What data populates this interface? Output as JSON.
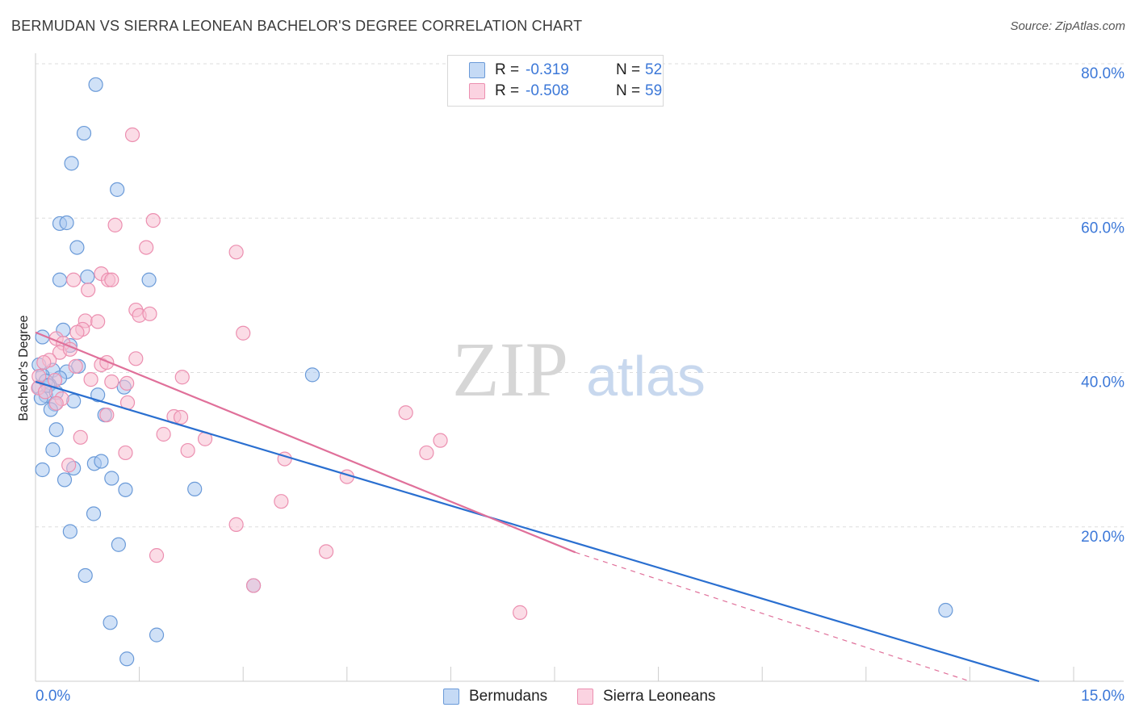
{
  "title": "BERMUDAN VS SIERRA LEONEAN BACHELOR'S DEGREE CORRELATION CHART",
  "source": "Source: ZipAtlas.com",
  "watermark": {
    "zip": "ZIP",
    "atlas": "atlas"
  },
  "legend": {
    "r_label": "R =",
    "n_label": "N =",
    "rows": [
      {
        "r": "-0.319",
        "n": "52"
      },
      {
        "r": "-0.508",
        "n": "59"
      }
    ]
  },
  "colors": {
    "blue_fill": "#aac8f0",
    "blue_stroke": "#6a9ad8",
    "blue_line": "#2a6fd0",
    "pink_fill": "#f7bfd2",
    "pink_stroke": "#ec8fb0",
    "pink_line": "#e0709a",
    "grid": "#dddddd",
    "axis_text": "#3c78d8"
  },
  "chart_data": {
    "type": "scatter",
    "title": "BERMUDAN VS SIERRA LEONEAN BACHELOR'S DEGREE CORRELATION CHART",
    "xlabel": "",
    "ylabel": "Bachelor's Degree",
    "xlim": [
      0,
      15
    ],
    "ylim": [
      0,
      80
    ],
    "x_tick_labels": [
      "0.0%",
      "15.0%"
    ],
    "y_ticks": [
      20,
      40,
      60,
      80
    ],
    "y_tick_labels": [
      "20.0%",
      "40.0%",
      "60.0%",
      "80.0%"
    ],
    "grid": true,
    "series": [
      {
        "name": "Bermudans",
        "r": -0.319,
        "n": 52,
        "trend": {
          "x": [
            0,
            14.5
          ],
          "y": [
            38.8,
            0
          ]
        },
        "points": [
          [
            0.87,
            77.3
          ],
          [
            0.7,
            71.0
          ],
          [
            0.52,
            67.1
          ],
          [
            1.18,
            63.7
          ],
          [
            0.35,
            59.3
          ],
          [
            0.45,
            59.4
          ],
          [
            0.6,
            56.2
          ],
          [
            0.35,
            52.0
          ],
          [
            0.75,
            52.4
          ],
          [
            1.64,
            52.0
          ],
          [
            0.1,
            44.6
          ],
          [
            0.4,
            45.5
          ],
          [
            0.5,
            43.5
          ],
          [
            0.05,
            41.0
          ],
          [
            0.62,
            40.8
          ],
          [
            0.25,
            40.3
          ],
          [
            0.1,
            39.6
          ],
          [
            0.45,
            40.1
          ],
          [
            0.35,
            39.3
          ],
          [
            0.2,
            38.4
          ],
          [
            0.05,
            38.1
          ],
          [
            0.9,
            37.1
          ],
          [
            1.28,
            38.1
          ],
          [
            0.15,
            37.0
          ],
          [
            0.28,
            35.9
          ],
          [
            0.55,
            36.3
          ],
          [
            0.22,
            35.2
          ],
          [
            1.0,
            34.5
          ],
          [
            4.0,
            39.7
          ],
          [
            0.3,
            32.6
          ],
          [
            0.25,
            30.0
          ],
          [
            0.1,
            27.4
          ],
          [
            0.85,
            28.2
          ],
          [
            0.95,
            28.5
          ],
          [
            0.55,
            27.6
          ],
          [
            0.42,
            26.1
          ],
          [
            1.1,
            26.3
          ],
          [
            1.3,
            24.8
          ],
          [
            2.3,
            24.9
          ],
          [
            0.84,
            21.7
          ],
          [
            0.5,
            19.4
          ],
          [
            1.2,
            17.7
          ],
          [
            0.72,
            13.7
          ],
          [
            3.15,
            12.4
          ],
          [
            1.08,
            7.6
          ],
          [
            1.75,
            6.0
          ],
          [
            1.32,
            2.9
          ],
          [
            13.15,
            9.2
          ],
          [
            0.15,
            38.9
          ],
          [
            0.08,
            36.7
          ],
          [
            0.18,
            38.3
          ],
          [
            0.3,
            37.4
          ]
        ]
      },
      {
        "name": "Sierra Leoneans",
        "r": -0.508,
        "n": 59,
        "trend": {
          "x": [
            0,
            7.8
          ],
          "y": [
            45.2,
            16.7
          ]
        },
        "trend_dashed": {
          "x": [
            7.8,
            13.5
          ],
          "y": [
            16.7,
            0
          ]
        },
        "points": [
          [
            1.4,
            70.8
          ],
          [
            1.7,
            59.7
          ],
          [
            1.15,
            59.1
          ],
          [
            1.6,
            56.2
          ],
          [
            2.9,
            55.6
          ],
          [
            0.95,
            52.8
          ],
          [
            1.05,
            52.0
          ],
          [
            0.55,
            52.0
          ],
          [
            1.1,
            52.0
          ],
          [
            0.76,
            50.7
          ],
          [
            1.45,
            48.1
          ],
          [
            1.5,
            47.4
          ],
          [
            1.65,
            47.6
          ],
          [
            0.72,
            46.7
          ],
          [
            0.9,
            46.6
          ],
          [
            0.68,
            45.6
          ],
          [
            0.6,
            45.2
          ],
          [
            3.0,
            45.1
          ],
          [
            0.3,
            44.4
          ],
          [
            0.4,
            43.8
          ],
          [
            0.35,
            42.6
          ],
          [
            0.5,
            43.0
          ],
          [
            0.2,
            41.6
          ],
          [
            0.12,
            41.3
          ],
          [
            0.58,
            40.8
          ],
          [
            0.95,
            41.0
          ],
          [
            1.03,
            41.3
          ],
          [
            1.45,
            41.8
          ],
          [
            0.05,
            39.5
          ],
          [
            0.28,
            39.0
          ],
          [
            0.8,
            39.1
          ],
          [
            1.1,
            38.8
          ],
          [
            1.32,
            38.6
          ],
          [
            2.12,
            39.4
          ],
          [
            0.04,
            38.0
          ],
          [
            0.14,
            37.5
          ],
          [
            0.38,
            36.6
          ],
          [
            0.3,
            36.0
          ],
          [
            1.33,
            36.1
          ],
          [
            1.03,
            34.5
          ],
          [
            2.0,
            34.3
          ],
          [
            2.1,
            34.2
          ],
          [
            5.35,
            34.8
          ],
          [
            1.85,
            32.0
          ],
          [
            0.65,
            31.6
          ],
          [
            2.45,
            31.4
          ],
          [
            5.85,
            31.2
          ],
          [
            1.3,
            29.6
          ],
          [
            2.2,
            29.9
          ],
          [
            5.65,
            29.6
          ],
          [
            3.6,
            28.8
          ],
          [
            0.48,
            28.0
          ],
          [
            4.5,
            26.5
          ],
          [
            3.55,
            23.3
          ],
          [
            2.9,
            20.3
          ],
          [
            4.2,
            16.8
          ],
          [
            1.75,
            16.3
          ],
          [
            3.15,
            12.4
          ],
          [
            7.0,
            8.9
          ]
        ]
      }
    ]
  }
}
